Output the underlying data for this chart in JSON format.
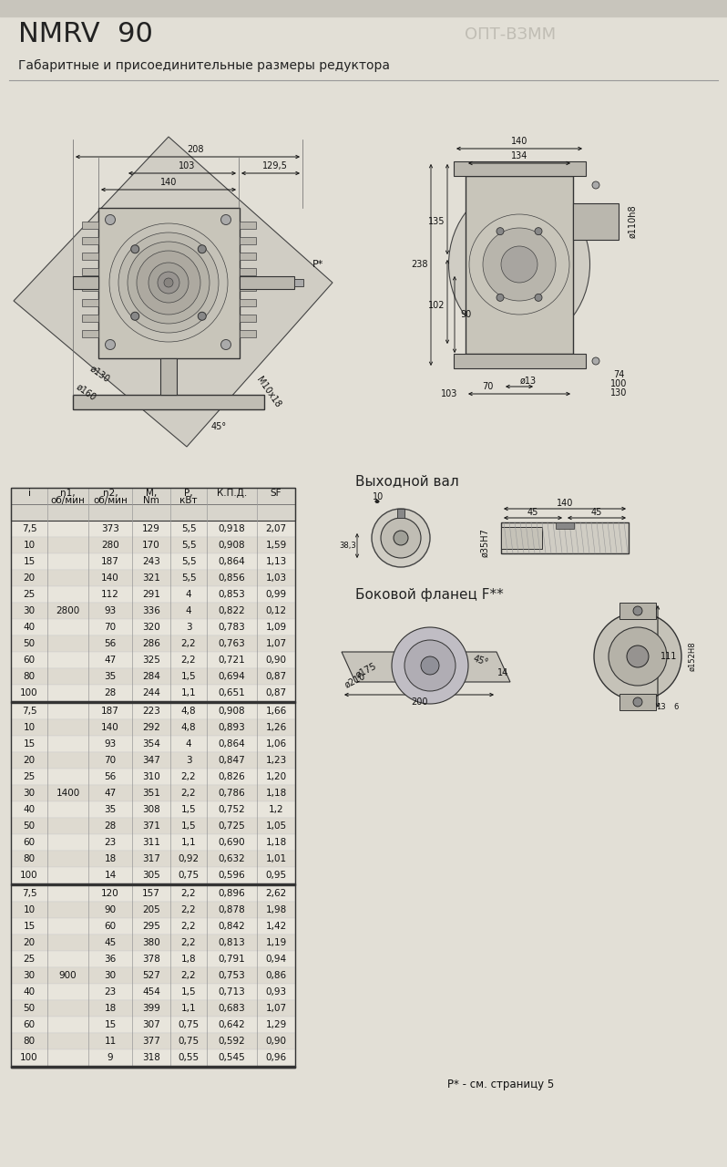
{
  "title": "NMRV  90",
  "subtitle": "Габаритные и присоединительные размеры редуктора",
  "watermark": "ОПТ-ВЗММ",
  "bg": "#e2dfd6",
  "table_data_2800": [
    [
      "7,5",
      "",
      "373",
      "129",
      "5,5",
      "0,918",
      "2,07"
    ],
    [
      "10",
      "",
      "280",
      "170",
      "5,5",
      "0,908",
      "1,59"
    ],
    [
      "15",
      "",
      "187",
      "243",
      "5,5",
      "0,864",
      "1,13"
    ],
    [
      "20",
      "",
      "140",
      "321",
      "5,5",
      "0,856",
      "1,03"
    ],
    [
      "25",
      "",
      "112",
      "291",
      "4",
      "0,853",
      "0,99"
    ],
    [
      "30",
      "2800",
      "93",
      "336",
      "4",
      "0,822",
      "0,12"
    ],
    [
      "40",
      "",
      "70",
      "320",
      "3",
      "0,783",
      "1,09"
    ],
    [
      "50",
      "",
      "56",
      "286",
      "2,2",
      "0,763",
      "1,07"
    ],
    [
      "60",
      "",
      "47",
      "325",
      "2,2",
      "0,721",
      "0,90"
    ],
    [
      "80",
      "",
      "35",
      "284",
      "1,5",
      "0,694",
      "0,87"
    ],
    [
      "100",
      "",
      "28",
      "244",
      "1,1",
      "0,651",
      "0,87"
    ]
  ],
  "table_data_1400": [
    [
      "7,5",
      "",
      "187",
      "223",
      "4,8",
      "0,908",
      "1,66"
    ],
    [
      "10",
      "",
      "140",
      "292",
      "4,8",
      "0,893",
      "1,26"
    ],
    [
      "15",
      "",
      "93",
      "354",
      "4",
      "0,864",
      "1,06"
    ],
    [
      "20",
      "",
      "70",
      "347",
      "3",
      "0,847",
      "1,23"
    ],
    [
      "25",
      "",
      "56",
      "310",
      "2,2",
      "0,826",
      "1,20"
    ],
    [
      "30",
      "1400",
      "47",
      "351",
      "2,2",
      "0,786",
      "1,18"
    ],
    [
      "40",
      "",
      "35",
      "308",
      "1,5",
      "0,752",
      "1,2"
    ],
    [
      "50",
      "",
      "28",
      "371",
      "1,5",
      "0,725",
      "1,05"
    ],
    [
      "60",
      "",
      "23",
      "311",
      "1,1",
      "0,690",
      "1,18"
    ],
    [
      "80",
      "",
      "18",
      "317",
      "0,92",
      "0,632",
      "1,01"
    ],
    [
      "100",
      "",
      "14",
      "305",
      "0,75",
      "0,596",
      "0,95"
    ]
  ],
  "table_data_900": [
    [
      "7,5",
      "",
      "120",
      "157",
      "2,2",
      "0,896",
      "2,62"
    ],
    [
      "10",
      "",
      "90",
      "205",
      "2,2",
      "0,878",
      "1,98"
    ],
    [
      "15",
      "",
      "60",
      "295",
      "2,2",
      "0,842",
      "1,42"
    ],
    [
      "20",
      "",
      "45",
      "380",
      "2,2",
      "0,813",
      "1,19"
    ],
    [
      "25",
      "",
      "36",
      "378",
      "1,8",
      "0,791",
      "0,94"
    ],
    [
      "30",
      "900",
      "30",
      "527",
      "2,2",
      "0,753",
      "0,86"
    ],
    [
      "40",
      "",
      "23",
      "454",
      "1,5",
      "0,713",
      "0,93"
    ],
    [
      "50",
      "",
      "18",
      "399",
      "1,1",
      "0,683",
      "1,07"
    ],
    [
      "60",
      "",
      "15",
      "307",
      "0,75",
      "0,642",
      "1,29"
    ],
    [
      "80",
      "",
      "11",
      "377",
      "0,75",
      "0,592",
      "0,90"
    ],
    [
      "100",
      "",
      "9",
      "318",
      "0,55",
      "0,545",
      "0,96"
    ]
  ],
  "footnote": "Р* - см. страницу 5"
}
